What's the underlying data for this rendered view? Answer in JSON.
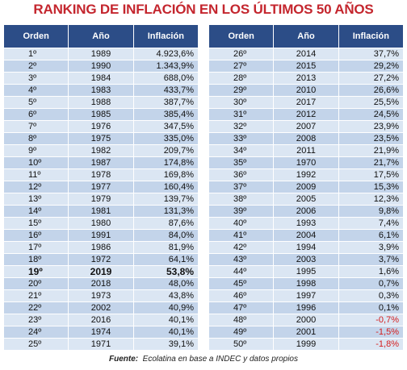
{
  "title": "RANKING DE INFLACIÓN EN LOS ÚLTIMOS 50 AÑOS",
  "tables": [
    {
      "headers": [
        "Orden",
        "Año",
        "Inflación"
      ],
      "rows": [
        [
          "1º",
          "1989",
          "4.923,6%"
        ],
        [
          "2º",
          "1990",
          "1.343,9%"
        ],
        [
          "3º",
          "1984",
          "688,0%"
        ],
        [
          "4º",
          "1983",
          "433,7%"
        ],
        [
          "5º",
          "1988",
          "387,7%"
        ],
        [
          "6º",
          "1985",
          "385,4%"
        ],
        [
          "7º",
          "1976",
          "347,5%"
        ],
        [
          "8º",
          "1975",
          "335,0%"
        ],
        [
          "9º",
          "1982",
          "209,7%"
        ],
        [
          "10º",
          "1987",
          "174,8%"
        ],
        [
          "11º",
          "1978",
          "169,8%"
        ],
        [
          "12º",
          "1977",
          "160,4%"
        ],
        [
          "13º",
          "1979",
          "139,7%"
        ],
        [
          "14º",
          "1981",
          "131,3%"
        ],
        [
          "15º",
          "1980",
          "87,6%"
        ],
        [
          "16º",
          "1991",
          "84,0%"
        ],
        [
          "17º",
          "1986",
          "81,9%"
        ],
        [
          "18º",
          "1972",
          "64,1%"
        ],
        [
          "19º",
          "2019",
          "53,8%"
        ],
        [
          "20º",
          "2018",
          "48,0%"
        ],
        [
          "21º",
          "1973",
          "43,8%"
        ],
        [
          "22º",
          "2002",
          "40,9%"
        ],
        [
          "23º",
          "2016",
          "40,1%"
        ],
        [
          "24º",
          "1974",
          "40,1%"
        ],
        [
          "25º",
          "1971",
          "39,1%"
        ]
      ]
    },
    {
      "headers": [
        "Orden",
        "Año",
        "Inflación"
      ],
      "rows": [
        [
          "26º",
          "2014",
          "37,7%"
        ],
        [
          "27º",
          "2015",
          "29,2%"
        ],
        [
          "28º",
          "2013",
          "27,2%"
        ],
        [
          "29º",
          "2010",
          "26,6%"
        ],
        [
          "30º",
          "2017",
          "25,5%"
        ],
        [
          "31º",
          "2012",
          "24,5%"
        ],
        [
          "32º",
          "2007",
          "23,9%"
        ],
        [
          "33º",
          "2008",
          "23,5%"
        ],
        [
          "34º",
          "2011",
          "21,9%"
        ],
        [
          "35º",
          "1970",
          "21,7%"
        ],
        [
          "36º",
          "1992",
          "17,5%"
        ],
        [
          "37º",
          "2009",
          "15,3%"
        ],
        [
          "38º",
          "2005",
          "12,3%"
        ],
        [
          "39º",
          "2006",
          "9,8%"
        ],
        [
          "40º",
          "1993",
          "7,4%"
        ],
        [
          "41º",
          "2004",
          "6,1%"
        ],
        [
          "42º",
          "1994",
          "3,9%"
        ],
        [
          "43º",
          "2003",
          "3,7%"
        ],
        [
          "44º",
          "1995",
          "1,6%"
        ],
        [
          "45º",
          "1998",
          "0,7%"
        ],
        [
          "46º",
          "1997",
          "0,3%"
        ],
        [
          "47º",
          "1996",
          "0,1%"
        ],
        [
          "48º",
          "2000",
          "-0,7%"
        ],
        [
          "49º",
          "2001",
          "-1,5%"
        ],
        [
          "50º",
          "1999",
          "-1,8%"
        ]
      ]
    }
  ],
  "footer": {
    "label": "Fuente:",
    "text": "Ecolatina en base a INDEC y datos propios"
  }
}
